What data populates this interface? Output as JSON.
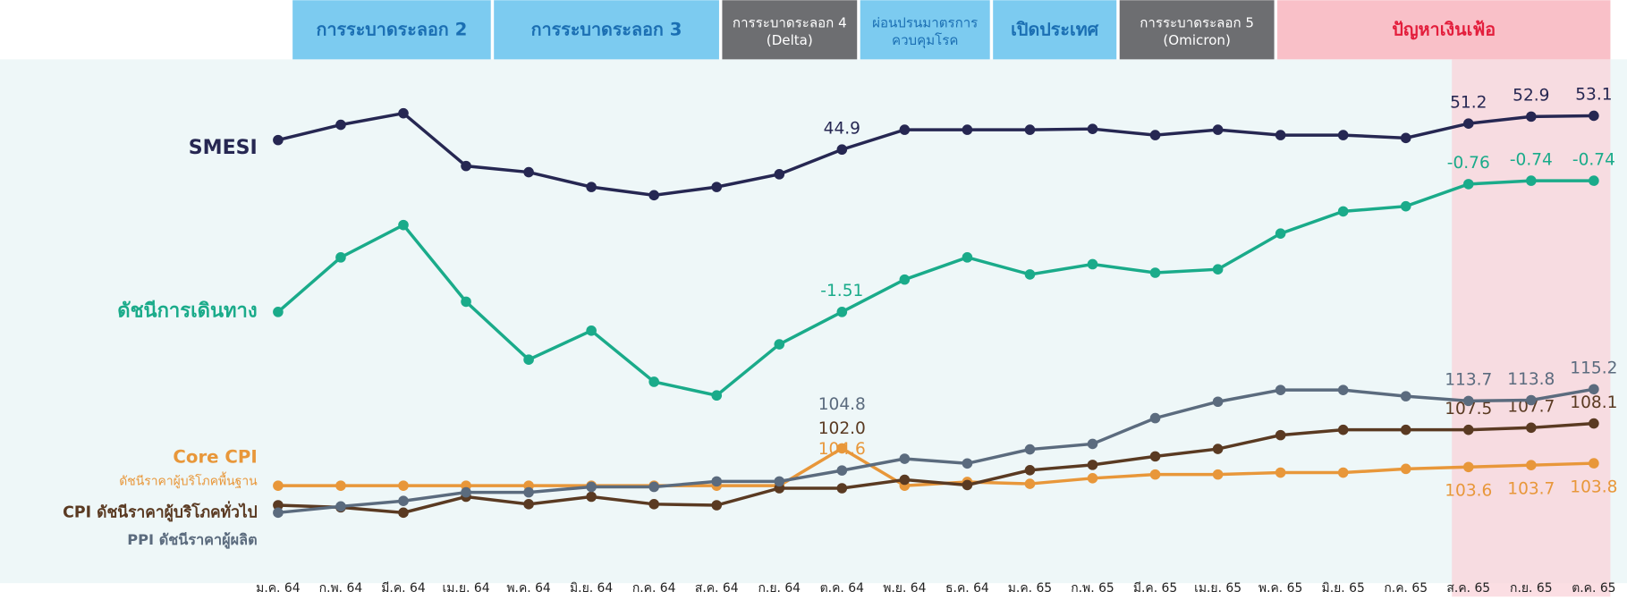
{
  "chart_data": {
    "type": "line",
    "categories": [
      "ม.ค. 64",
      "ก.พ. 64",
      "มี.ค. 64",
      "เม.ย. 64",
      "พ.ค. 64",
      "มิ.ย. 64",
      "ก.ค. 64",
      "ส.ค. 64",
      "ก.ย. 64",
      "ต.ค. 64",
      "พ.ย. 64",
      "ธ.ค. 64",
      "ม.ค. 65",
      "ก.พ. 65",
      "มี.ค. 65",
      "เม.ย. 65",
      "พ.ค. 65",
      "มิ.ย. 65",
      "ก.ค. 65",
      "ส.ค. 65",
      "ก.ย. 65",
      "ต.ค. 65"
    ],
    "phases": [
      {
        "label": [
          "การระบาดระลอก 2"
        ],
        "color": "#7ccbf0",
        "text_color": "#1b6fb3"
      },
      {
        "label": [
          "การระบาดระลอก 3"
        ],
        "color": "#7ccbf0",
        "text_color": "#1b6fb3"
      },
      {
        "label": [
          "การระบาดระลอก 4",
          "(Delta)"
        ],
        "color": "#6d6e71",
        "text_color": "#ffffff"
      },
      {
        "label": [
          "ผ่อนปรนมาตรการ",
          "ควบคุมโรค"
        ],
        "color": "#7ccbf0",
        "text_color": "#1b6fb3"
      },
      {
        "label": [
          "เปิดประเทศ"
        ],
        "color": "#7ccbf0",
        "text_color": "#1b6fb3"
      },
      {
        "label": [
          "การระบาดระลอก 5",
          "(Omicron)"
        ],
        "color": "#6d6e71",
        "text_color": "#ffffff"
      },
      {
        "label": [
          "ปัญหาเงินเฟ้อ"
        ],
        "color": "#f9c0c8",
        "text_color": "#e31e3c"
      }
    ],
    "series": [
      {
        "name": "SMESI",
        "color": "#262752",
        "values": [
          47.2,
          50.9,
          53.7,
          40.9,
          39.4,
          35.8,
          33.8,
          35.8,
          38.9,
          44.9,
          49.7,
          49.7,
          49.7,
          49.9,
          48.4,
          49.7,
          48.4,
          48.4,
          47.7,
          51.2,
          52.9,
          53.1
        ],
        "value_labels": [
          null,
          null,
          null,
          null,
          null,
          null,
          null,
          null,
          null,
          "44.9",
          null,
          null,
          null,
          null,
          null,
          null,
          null,
          null,
          null,
          "51.2",
          "52.9",
          "53.1"
        ]
      },
      {
        "name": "ดัชนีการเดินทาง",
        "color": "#1aab8a",
        "values": [
          -1.51,
          -1.19,
          -1.0,
          -1.45,
          -1.79,
          -1.62,
          -1.92,
          -2.0,
          -1.7,
          -1.51,
          -1.32,
          -1.19,
          -1.29,
          -1.23,
          -1.28,
          -1.26,
          -1.05,
          -0.92,
          -0.89,
          -0.76,
          -0.74,
          -0.74
        ],
        "value_labels": [
          null,
          null,
          null,
          null,
          null,
          null,
          null,
          null,
          null,
          "-1.51",
          null,
          null,
          null,
          null,
          null,
          null,
          null,
          null,
          null,
          "-0.76",
          "-0.74",
          "-0.74"
        ]
      },
      {
        "name": "Core CPI",
        "description": "ดัชนีราคาผู้บริโภคพื้นฐาน",
        "color": "#e8973a",
        "values": [
          102.6,
          102.6,
          102.6,
          102.6,
          102.6,
          102.6,
          102.6,
          102.6,
          102.6,
          104.6,
          102.6,
          102.8,
          102.7,
          103.0,
          103.2,
          103.2,
          103.3,
          103.3,
          103.5,
          103.6,
          103.7,
          103.8
        ],
        "value_labels": [
          null,
          null,
          null,
          null,
          null,
          null,
          null,
          null,
          null,
          "104.6",
          null,
          null,
          null,
          null,
          null,
          null,
          null,
          null,
          null,
          "103.6",
          "103.7",
          "103.8"
        ]
      },
      {
        "name": "CPI ดัชนีราคาผู้บริโภคทั่วไป",
        "color": "#5a3a22",
        "values": [
          100.4,
          100.2,
          99.7,
          101.2,
          100.5,
          101.2,
          100.5,
          100.4,
          102.0,
          102.0,
          102.8,
          102.3,
          103.7,
          104.2,
          105.0,
          105.7,
          107.0,
          107.5,
          107.5,
          107.5,
          107.7,
          108.1
        ],
        "value_labels": [
          null,
          null,
          null,
          null,
          null,
          null,
          null,
          null,
          null,
          "102.0",
          null,
          null,
          null,
          null,
          null,
          null,
          null,
          null,
          null,
          "107.5",
          "107.7",
          "108.1"
        ]
      },
      {
        "name": "PPI ดัชนีราคาผู้ผลิต",
        "color": "#5b6b7e",
        "values": [
          99.4,
          100.2,
          100.9,
          102.0,
          102.0,
          102.7,
          102.7,
          103.4,
          103.4,
          104.8,
          106.3,
          105.7,
          107.5,
          108.2,
          111.5,
          113.6,
          115.1,
          115.1,
          114.3,
          113.7,
          113.8,
          115.2
        ],
        "value_labels": [
          null,
          null,
          null,
          null,
          null,
          null,
          null,
          null,
          null,
          "104.8",
          null,
          null,
          null,
          null,
          null,
          null,
          null,
          null,
          null,
          "113.7",
          "113.8",
          "115.2"
        ]
      }
    ]
  }
}
